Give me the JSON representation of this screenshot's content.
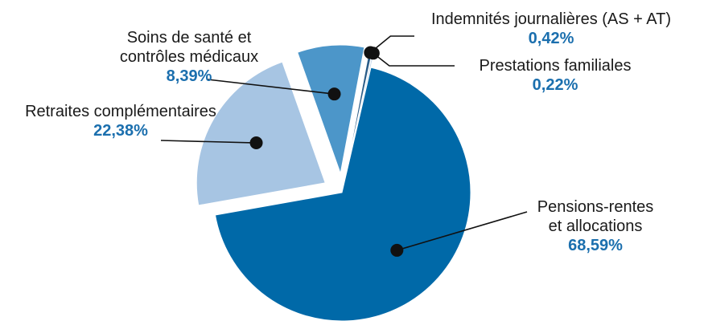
{
  "chart_data": {
    "type": "pie",
    "categories": [
      "Pensions-rentes et allocations",
      "Retraites complémentaires",
      "Soins de santé et contrôles médicaux",
      "Indemnités journalières (AS + AT)",
      "Prestations familiales"
    ],
    "values": [
      68.59,
      22.38,
      8.39,
      0.42,
      0.22
    ],
    "value_labels": [
      "68,59%",
      "22,38%",
      "8,39%",
      "0,42%",
      "0,22%"
    ],
    "colors": [
      "#0069a8",
      "#a7c5e3",
      "#4c96c9",
      "#2a5c88",
      "#c4d8ec"
    ]
  }
}
